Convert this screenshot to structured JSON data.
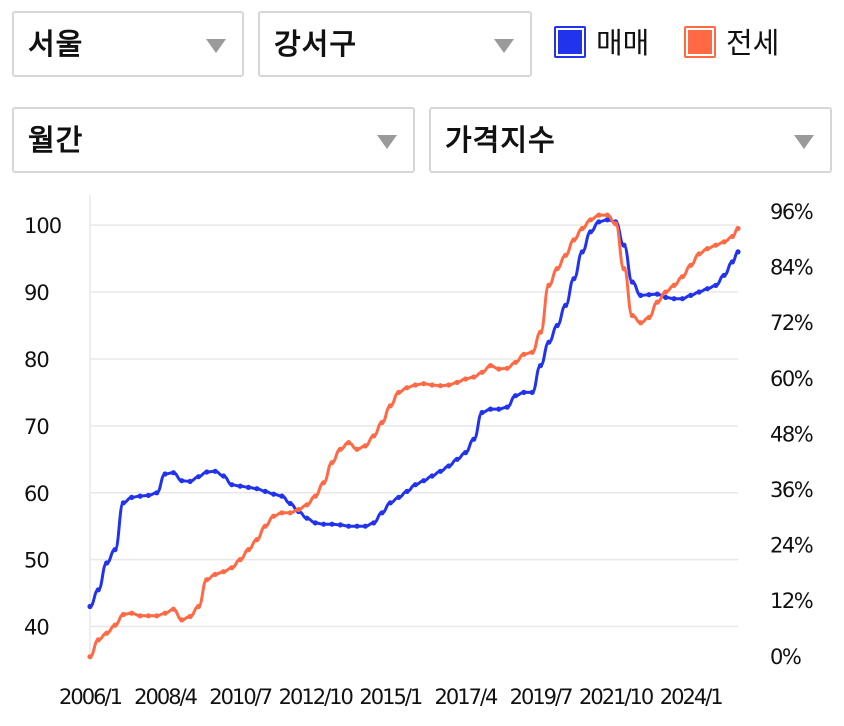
{
  "selectors": {
    "region": "서울",
    "district": "강서구",
    "period": "월간",
    "metric": "가격지수"
  },
  "legend": {
    "sale": "매매",
    "jeonse": "전세"
  },
  "colors": {
    "sale": "#2233ee",
    "jeonse": "#ff6a45",
    "grid": "#e8e8e8",
    "caret": "#9a9a9a"
  },
  "chart_data": {
    "type": "line",
    "title": "",
    "xlabel": "",
    "ylabel": "",
    "left_axis": {
      "ticks": [
        "100",
        "90",
        "80",
        "70",
        "60",
        "50",
        "40"
      ],
      "range": [
        35,
        102
      ]
    },
    "right_axis": {
      "ticks": [
        "96%",
        "84%",
        "72%",
        "60%",
        "48%",
        "36%",
        "24%",
        "12%",
        "0%"
      ],
      "range": [
        0,
        96
      ]
    },
    "x_ticks": [
      "2006/1",
      "2008/4",
      "2010/7",
      "2012/10",
      "2015/1",
      "2017/4",
      "2019/7",
      "2021/10",
      "2024/1"
    ],
    "x_range": [
      "2006/1",
      "2025/6"
    ],
    "grid": true,
    "legend_placement": "top-right",
    "series": [
      {
        "name": "매매",
        "key": "sale",
        "points": [
          [
            "2006/1",
            43.0
          ],
          [
            "2006/4",
            45.5
          ],
          [
            "2006/7",
            49.5
          ],
          [
            "2006/10",
            51.5
          ],
          [
            "2007/1",
            58.5
          ],
          [
            "2007/4",
            59.3
          ],
          [
            "2007/7",
            59.5
          ],
          [
            "2007/10",
            59.6
          ],
          [
            "2008/1",
            60.0
          ],
          [
            "2008/4",
            62.8
          ],
          [
            "2008/7",
            63.0
          ],
          [
            "2008/10",
            61.8
          ],
          [
            "2009/1",
            61.7
          ],
          [
            "2009/4",
            62.4
          ],
          [
            "2009/7",
            63.1
          ],
          [
            "2009/10",
            63.2
          ],
          [
            "2010/1",
            62.5
          ],
          [
            "2010/4",
            61.2
          ],
          [
            "2010/7",
            61.0
          ],
          [
            "2010/10",
            60.8
          ],
          [
            "2011/1",
            60.6
          ],
          [
            "2011/4",
            60.2
          ],
          [
            "2011/7",
            59.8
          ],
          [
            "2011/10",
            59.5
          ],
          [
            "2012/1",
            58.4
          ],
          [
            "2012/4",
            57.2
          ],
          [
            "2012/7",
            56.2
          ],
          [
            "2012/10",
            55.5
          ],
          [
            "2013/1",
            55.3
          ],
          [
            "2013/4",
            55.3
          ],
          [
            "2013/7",
            55.2
          ],
          [
            "2013/10",
            55.0
          ],
          [
            "2014/1",
            55.0
          ],
          [
            "2014/4",
            55.0
          ],
          [
            "2014/7",
            55.5
          ],
          [
            "2014/10",
            57.0
          ],
          [
            "2015/1",
            58.5
          ],
          [
            "2015/4",
            59.3
          ],
          [
            "2015/7",
            60.2
          ],
          [
            "2015/10",
            61.2
          ],
          [
            "2016/1",
            61.8
          ],
          [
            "2016/4",
            62.5
          ],
          [
            "2016/7",
            63.2
          ],
          [
            "2016/10",
            64.0
          ],
          [
            "2017/1",
            65.0
          ],
          [
            "2017/4",
            66.0
          ],
          [
            "2017/7",
            68.0
          ],
          [
            "2017/10",
            72.0
          ],
          [
            "2018/1",
            72.5
          ],
          [
            "2018/4",
            72.5
          ],
          [
            "2018/7",
            72.8
          ],
          [
            "2018/10",
            74.5
          ],
          [
            "2019/1",
            75.0
          ],
          [
            "2019/4",
            75.0
          ],
          [
            "2019/7",
            79.0
          ],
          [
            "2019/10",
            82.5
          ],
          [
            "2020/1",
            85.0
          ],
          [
            "2020/4",
            88.0
          ],
          [
            "2020/7",
            92.0
          ],
          [
            "2020/10",
            96.0
          ],
          [
            "2021/1",
            99.0
          ],
          [
            "2021/4",
            100.5
          ],
          [
            "2021/7",
            100.8
          ],
          [
            "2021/10",
            100.5
          ],
          [
            "2022/1",
            97.0
          ],
          [
            "2022/4",
            91.5
          ],
          [
            "2022/7",
            89.5
          ],
          [
            "2022/10",
            89.6
          ],
          [
            "2023/1",
            89.7
          ],
          [
            "2023/4",
            89.2
          ],
          [
            "2023/7",
            89.0
          ],
          [
            "2023/10",
            89.0
          ],
          [
            "2024/1",
            89.5
          ],
          [
            "2024/4",
            90.0
          ],
          [
            "2024/7",
            90.5
          ],
          [
            "2024/10",
            91.0
          ],
          [
            "2025/1",
            92.5
          ],
          [
            "2025/4",
            94.5
          ],
          [
            "2025/6",
            96.0
          ]
        ]
      },
      {
        "name": "전세",
        "key": "jeonse",
        "points": [
          [
            "2006/1",
            35.5
          ],
          [
            "2006/4",
            38.0
          ],
          [
            "2006/7",
            39.0
          ],
          [
            "2006/10",
            40.2
          ],
          [
            "2007/1",
            41.8
          ],
          [
            "2007/4",
            42.0
          ],
          [
            "2007/7",
            41.6
          ],
          [
            "2007/10",
            41.6
          ],
          [
            "2008/1",
            41.6
          ],
          [
            "2008/4",
            42.0
          ],
          [
            "2008/7",
            42.6
          ],
          [
            "2008/10",
            41.0
          ],
          [
            "2009/1",
            41.5
          ],
          [
            "2009/4",
            43.0
          ],
          [
            "2009/7",
            47.0
          ],
          [
            "2009/10",
            47.8
          ],
          [
            "2010/1",
            48.2
          ],
          [
            "2010/4",
            48.8
          ],
          [
            "2010/7",
            50.0
          ],
          [
            "2010/10",
            51.5
          ],
          [
            "2011/1",
            53.0
          ],
          [
            "2011/4",
            55.0
          ],
          [
            "2011/7",
            56.5
          ],
          [
            "2011/10",
            57.0
          ],
          [
            "2012/1",
            57.0
          ],
          [
            "2012/4",
            57.5
          ],
          [
            "2012/7",
            58.2
          ],
          [
            "2012/10",
            59.5
          ],
          [
            "2013/1",
            61.5
          ],
          [
            "2013/4",
            64.5
          ],
          [
            "2013/7",
            66.5
          ],
          [
            "2013/10",
            67.5
          ],
          [
            "2014/1",
            66.5
          ],
          [
            "2014/4",
            67.0
          ],
          [
            "2014/7",
            68.5
          ],
          [
            "2014/10",
            70.5
          ],
          [
            "2015/1",
            73.0
          ],
          [
            "2015/4",
            75.0
          ],
          [
            "2015/7",
            75.7
          ],
          [
            "2015/10",
            76.1
          ],
          [
            "2016/1",
            76.3
          ],
          [
            "2016/4",
            76.1
          ],
          [
            "2016/7",
            76.0
          ],
          [
            "2016/10",
            76.1
          ],
          [
            "2017/1",
            76.5
          ],
          [
            "2017/4",
            77.0
          ],
          [
            "2017/7",
            77.3
          ],
          [
            "2017/10",
            78.0
          ],
          [
            "2018/1",
            79.0
          ],
          [
            "2018/4",
            78.5
          ],
          [
            "2018/7",
            78.6
          ],
          [
            "2018/10",
            79.5
          ],
          [
            "2019/1",
            80.7
          ],
          [
            "2019/4",
            81.0
          ],
          [
            "2019/7",
            84.0
          ],
          [
            "2019/10",
            91.0
          ],
          [
            "2020/1",
            93.5
          ],
          [
            "2020/4",
            95.5
          ],
          [
            "2020/7",
            97.8
          ],
          [
            "2020/10",
            99.5
          ],
          [
            "2021/1",
            100.8
          ],
          [
            "2021/4",
            101.5
          ],
          [
            "2021/7",
            101.5
          ],
          [
            "2021/10",
            100.2
          ],
          [
            "2022/1",
            93.5
          ],
          [
            "2022/4",
            86.5
          ],
          [
            "2022/7",
            85.4
          ],
          [
            "2022/10",
            86.2
          ],
          [
            "2023/1",
            88.5
          ],
          [
            "2023/4",
            90.0
          ],
          [
            "2023/7",
            91.0
          ],
          [
            "2023/10",
            92.3
          ],
          [
            "2024/1",
            94.0
          ],
          [
            "2024/4",
            95.7
          ],
          [
            "2024/7",
            96.5
          ],
          [
            "2024/10",
            97.0
          ],
          [
            "2025/1",
            97.5
          ],
          [
            "2025/4",
            98.3
          ],
          [
            "2025/6",
            99.5
          ]
        ]
      }
    ]
  }
}
